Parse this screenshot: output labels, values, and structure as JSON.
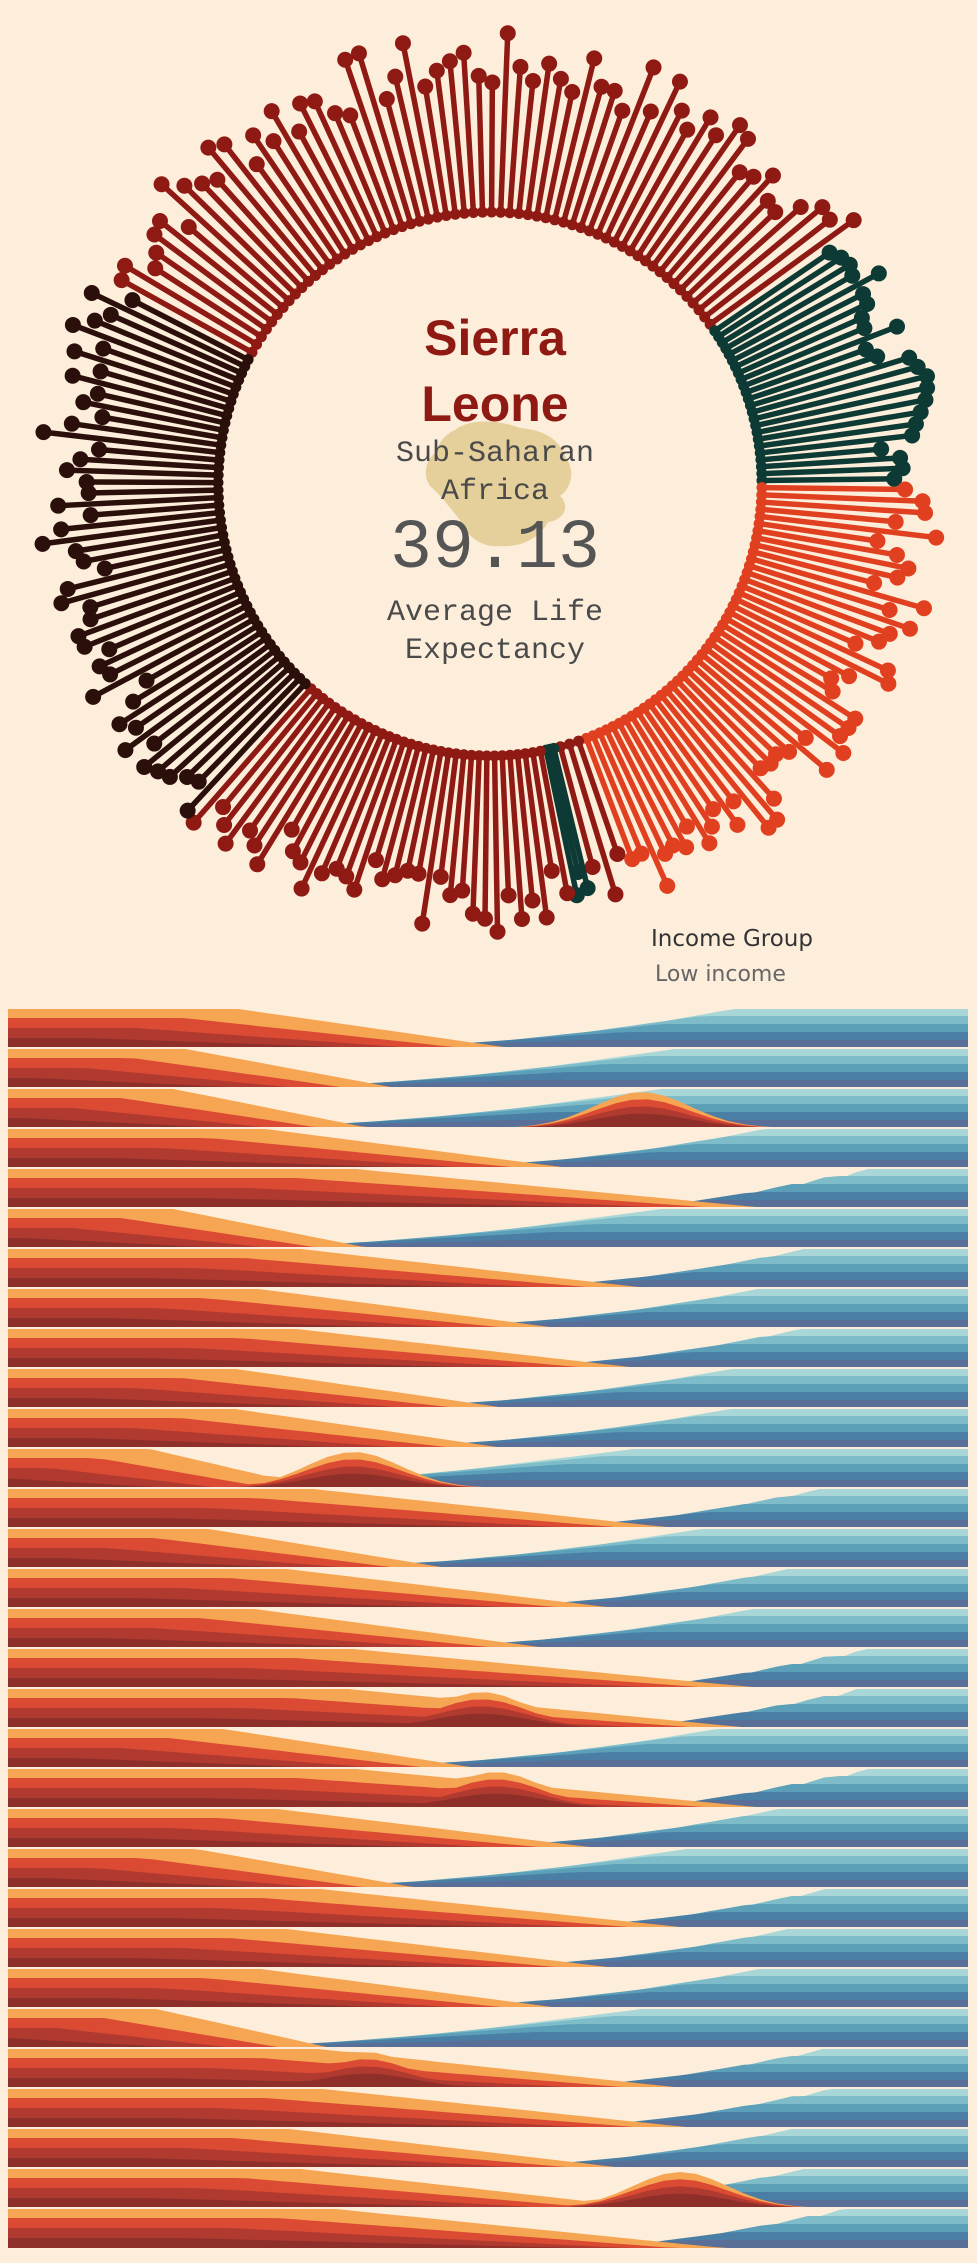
{
  "country": "Sierra Leone",
  "region": "Sub-Saharan Africa",
  "average_value": "39.13",
  "average_label": "Average Life Expectancy",
  "income": {
    "title": "Income Group",
    "value": "Low income"
  },
  "colors": {
    "background": "#fdeedb",
    "map_silhouette": "#e5cf9b",
    "title": "#8e1a13",
    "radial_red": "#8e1a13",
    "radial_teal": "#0d3a34",
    "radial_orange": "#e0401f",
    "radial_dark": "#2b0f0a",
    "strip_warm": [
      "#f6a552",
      "#db4a33",
      "#b03a30",
      "#8e2f2a"
    ],
    "strip_cool": [
      "#a9d6d6",
      "#7dbcc8",
      "#5b9fb8",
      "#4a7ea4",
      "#5a6f97"
    ]
  },
  "chart_data": [
    {
      "type": "radial-lollipop",
      "description_note": "",
      "segments": [
        {
          "start_deg": -62,
          "end_deg": 55,
          "color_key": "radial_red",
          "count": 61
        },
        {
          "start_deg": 55,
          "end_deg": 90,
          "color_key": "radial_teal",
          "count": 24
        },
        {
          "start_deg": 90,
          "end_deg": 160,
          "color_key": "radial_orange",
          "count": 46
        },
        {
          "start_deg": 160,
          "end_deg": 166,
          "color_key": "radial_red",
          "count": 3
        },
        {
          "start_deg": 166,
          "end_deg": 168.5,
          "color_key": "radial_teal",
          "count": 3
        },
        {
          "start_deg": 168.5,
          "end_deg": 222,
          "color_key": "radial_red",
          "count": 33
        },
        {
          "start_deg": 222,
          "end_deg": 298,
          "color_key": "radial_dark",
          "count": 48
        }
      ],
      "inner_radius_ratio": 0.56,
      "value_range": [
        0.56,
        1.0
      ]
    },
    {
      "type": "area",
      "rows": 31,
      "layers_warm": 4,
      "layers_cool": 5
    }
  ]
}
